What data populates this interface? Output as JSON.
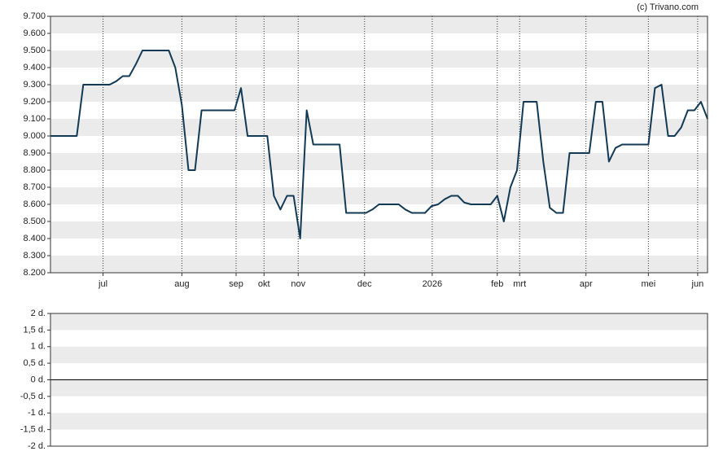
{
  "credit": "(c) Trivano.com",
  "chart_data": [
    {
      "type": "line",
      "color": "#123a55",
      "grid": true,
      "values": [
        9.0,
        9.0,
        9.0,
        9.0,
        9.0,
        9.3,
        9.3,
        9.3,
        9.3,
        9.3,
        9.32,
        9.35,
        9.35,
        9.42,
        9.5,
        9.5,
        9.5,
        9.5,
        9.5,
        9.4,
        9.18,
        8.8,
        8.8,
        9.15,
        9.15,
        9.15,
        9.15,
        9.15,
        9.15,
        9.28,
        9.0,
        9.0,
        9.0,
        9.0,
        8.65,
        8.57,
        8.65,
        8.65,
        8.4,
        9.15,
        8.95,
        8.95,
        8.95,
        8.95,
        8.95,
        8.55,
        8.55,
        8.55,
        8.55,
        8.57,
        8.6,
        8.6,
        8.6,
        8.6,
        8.57,
        8.55,
        8.55,
        8.55,
        8.59,
        8.6,
        8.63,
        8.65,
        8.65,
        8.61,
        8.6,
        8.6,
        8.6,
        8.6,
        8.65,
        8.5,
        8.7,
        8.8,
        9.2,
        9.2,
        9.2,
        8.85,
        8.58,
        8.55,
        8.55,
        8.9,
        8.9,
        8.9,
        8.9,
        9.2,
        9.2,
        8.85,
        8.93,
        8.95,
        8.95,
        8.95,
        8.95,
        8.95,
        9.28,
        9.3,
        9.0,
        9.0,
        9.05,
        9.15,
        9.15,
        9.2,
        9.1
      ],
      "xlim": [
        0,
        100
      ],
      "xticks": [
        {
          "value": 8,
          "label": "jul"
        },
        {
          "value": 20,
          "label": "aug"
        },
        {
          "value": 28.25,
          "label": "sep"
        },
        {
          "value": 32.5,
          "label": "okt"
        },
        {
          "value": 37.7,
          "label": "nov"
        },
        {
          "value": 47.8,
          "label": "dec"
        },
        {
          "value": 58.1,
          "label": "2026"
        },
        {
          "value": 68,
          "label": "feb"
        },
        {
          "value": 71.4,
          "label": "mrt"
        },
        {
          "value": 81.5,
          "label": "apr"
        },
        {
          "value": 91,
          "label": "mei"
        },
        {
          "value": 98.5,
          "label": "jun"
        }
      ],
      "ylim": [
        8.2,
        9.7
      ],
      "yticks": [
        {
          "value": 9.7,
          "label": "9.700"
        },
        {
          "value": 9.6,
          "label": "9.600"
        },
        {
          "value": 9.5,
          "label": "9.500"
        },
        {
          "value": 9.4,
          "label": "9.400"
        },
        {
          "value": 9.3,
          "label": "9.300"
        },
        {
          "value": 9.2,
          "label": "9.200"
        },
        {
          "value": 9.1,
          "label": "9.100"
        },
        {
          "value": 9.0,
          "label": "9.000"
        },
        {
          "value": 8.9,
          "label": "8.900"
        },
        {
          "value": 8.8,
          "label": "8.800"
        },
        {
          "value": 8.7,
          "label": "8.700"
        },
        {
          "value": 8.6,
          "label": "8.600"
        },
        {
          "value": 8.5,
          "label": "8.500"
        },
        {
          "value": 8.4,
          "label": "8.400"
        },
        {
          "value": 8.3,
          "label": "8.300"
        },
        {
          "value": 8.2,
          "label": "8.200"
        }
      ]
    },
    {
      "type": "line",
      "grid": true,
      "ylim": [
        -2,
        2
      ],
      "yticks": [
        {
          "value": 2,
          "label": "2 d."
        },
        {
          "value": 1.5,
          "label": "1,5 d."
        },
        {
          "value": 1,
          "label": "1 d."
        },
        {
          "value": 0.5,
          "label": "0,5 d."
        },
        {
          "value": 0,
          "label": "0 d."
        },
        {
          "value": -0.5,
          "label": "-0,5 d."
        },
        {
          "value": -1,
          "label": "-1 d."
        },
        {
          "value": -1.5,
          "label": "-1,5 d."
        },
        {
          "value": -2,
          "label": "-2 d."
        }
      ]
    }
  ]
}
